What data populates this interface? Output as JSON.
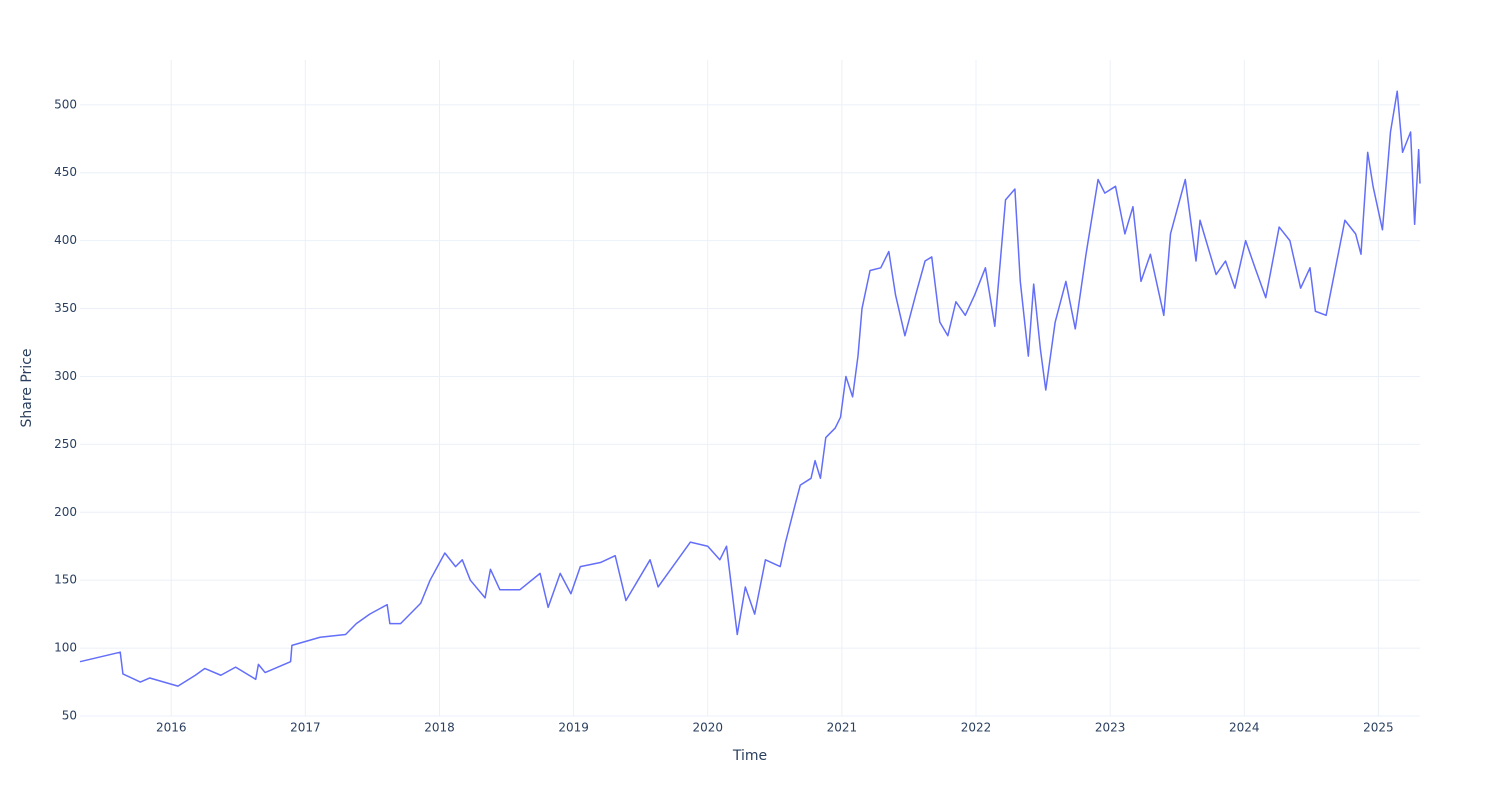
{
  "chart_data": {
    "type": "line",
    "x_label": "Time",
    "y_label": "Share Price",
    "color": "#636efa",
    "grid": true,
    "xlim": [
      2015.32,
      2025.31
    ],
    "xticks": [
      2016,
      2017,
      2018,
      2019,
      2020,
      2021,
      2022,
      2023,
      2024,
      2025
    ],
    "ylim": [
      50,
      533
    ],
    "yticks": [
      50,
      100,
      150,
      200,
      250,
      300,
      350,
      400,
      450,
      500
    ],
    "x": [
      2015.32,
      2015.62,
      2015.64,
      2015.77,
      2015.84,
      2016.05,
      2016.18,
      2016.25,
      2016.37,
      2016.48,
      2016.63,
      2016.65,
      2016.7,
      2016.89,
      2016.9,
      2017.11,
      2017.3,
      2017.38,
      2017.48,
      2017.61,
      2017.63,
      2017.71,
      2017.86,
      2017.93,
      2018.04,
      2018.12,
      2018.17,
      2018.23,
      2018.34,
      2018.38,
      2018.45,
      2018.6,
      2018.75,
      2018.81,
      2018.9,
      2018.98,
      2019.05,
      2019.2,
      2019.31,
      2019.39,
      2019.57,
      2019.63,
      2019.87,
      2020.0,
      2020.09,
      2020.14,
      2020.22,
      2020.28,
      2020.35,
      2020.43,
      2020.54,
      2020.58,
      2020.65,
      2020.69,
      2020.77,
      2020.8,
      2020.84,
      2020.88,
      2020.95,
      2020.99,
      2021.03,
      2021.08,
      2021.12,
      2021.15,
      2021.21,
      2021.29,
      2021.35,
      2021.4,
      2021.47,
      2021.55,
      2021.62,
      2021.67,
      2021.73,
      2021.79,
      2021.85,
      2021.92,
      2021.99,
      2022.07,
      2022.14,
      2022.22,
      2022.29,
      2022.33,
      2022.39,
      2022.43,
      2022.48,
      2022.52,
      2022.59,
      2022.67,
      2022.74,
      2022.82,
      2022.91,
      2022.96,
      2023.04,
      2023.11,
      2023.17,
      2023.23,
      2023.3,
      2023.4,
      2023.45,
      2023.56,
      2023.64,
      2023.67,
      2023.79,
      2023.86,
      2023.93,
      2024.01,
      2024.08,
      2024.16,
      2024.26,
      2024.34,
      2024.42,
      2024.49,
      2024.53,
      2024.61,
      2024.68,
      2024.75,
      2024.83,
      2024.87,
      2024.92,
      2024.96,
      2025.03,
      2025.09,
      2025.14,
      2025.18,
      2025.24,
      2025.27,
      2025.3,
      2025.31
    ],
    "values": [
      90,
      97,
      81,
      75,
      78,
      72,
      80,
      85,
      80,
      86,
      77,
      88,
      82,
      90,
      102,
      108,
      110,
      118,
      125,
      132,
      118,
      118,
      133,
      150,
      170,
      160,
      165,
      150,
      137,
      158,
      143,
      143,
      155,
      130,
      155,
      140,
      160,
      163,
      168,
      135,
      165,
      145,
      178,
      175,
      165,
      175,
      110,
      145,
      125,
      165,
      160,
      178,
      205,
      220,
      225,
      238,
      225,
      255,
      262,
      270,
      300,
      285,
      315,
      350,
      378,
      380,
      392,
      360,
      330,
      360,
      385,
      388,
      340,
      330,
      355,
      345,
      360,
      380,
      337,
      430,
      438,
      370,
      315,
      368,
      320,
      290,
      340,
      370,
      335,
      390,
      445,
      435,
      440,
      405,
      425,
      370,
      390,
      345,
      405,
      445,
      385,
      415,
      375,
      385,
      365,
      400,
      380,
      358,
      410,
      400,
      365,
      380,
      348,
      345,
      380,
      415,
      405,
      390,
      465,
      440,
      408,
      480,
      510,
      465,
      480,
      412,
      467,
      442
    ]
  }
}
